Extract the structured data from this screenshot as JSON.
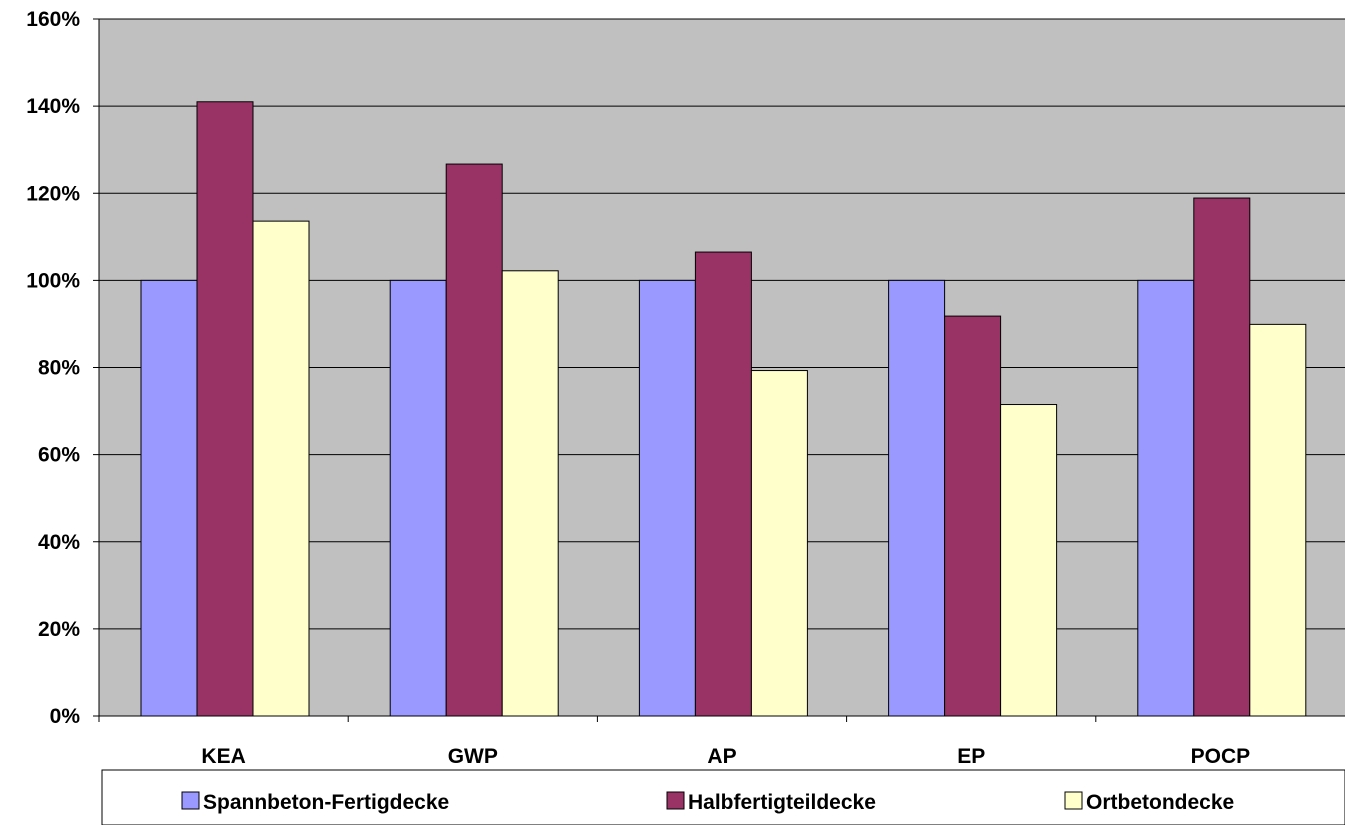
{
  "chart_data": {
    "type": "bar",
    "categories": [
      "KEA",
      "GWP",
      "AP",
      "EP",
      "POCP"
    ],
    "series": [
      {
        "name": "Spannbeton-Fertigdecke",
        "values": [
          100,
          100,
          100,
          100,
          100
        ],
        "color": "#9999ff"
      },
      {
        "name": "Halbfertigteildecke",
        "values": [
          141,
          126.7,
          106.5,
          91.8,
          118.9
        ],
        "color": "#993366"
      },
      {
        "name": "Ortbetondecke",
        "values": [
          113.6,
          102.2,
          79.3,
          71.5,
          89.9
        ],
        "color": "#ffffcc"
      }
    ],
    "ylim": [
      0,
      160
    ],
    "yticks": [
      "0%",
      "20%",
      "40%",
      "60%",
      "80%",
      "100%",
      "120%",
      "140%",
      "160%"
    ],
    "ytick_values": [
      0,
      20,
      40,
      60,
      80,
      100,
      120,
      140,
      160
    ],
    "grid": true,
    "plot_background": "#c0c0c0",
    "legend_position": "bottom"
  }
}
